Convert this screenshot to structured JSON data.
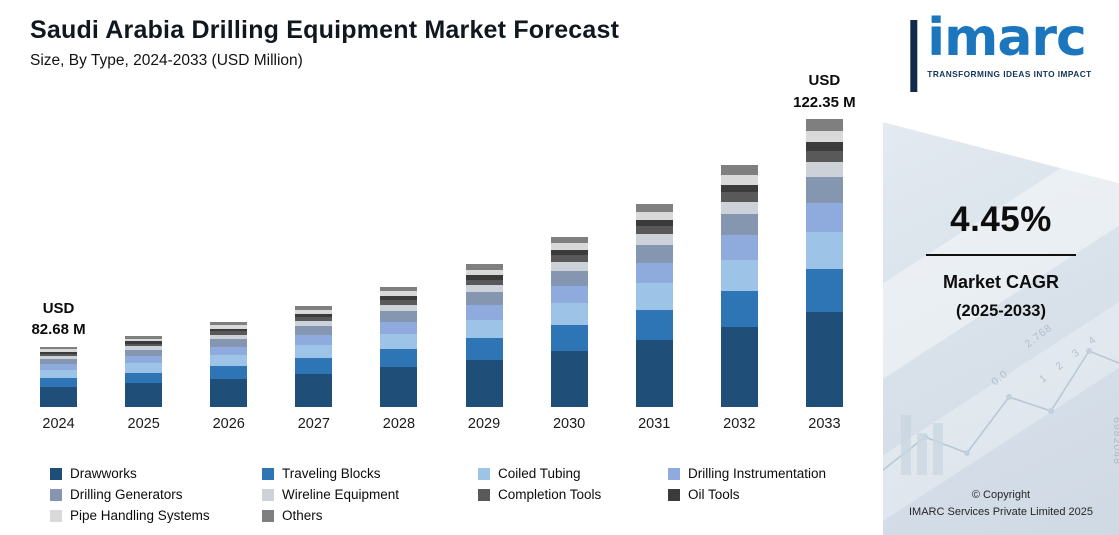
{
  "chart_data": {
    "type": "bar",
    "stacked": true,
    "title": "Saudi Arabia Drilling Equipment Market Forecast",
    "subtitle": "Size, By Type, 2024-2033 (USD Million)",
    "xlabel": "",
    "ylabel": "USD Million",
    "legend_position": "bottom",
    "grid": false,
    "categories": [
      "2024",
      "2025",
      "2026",
      "2027",
      "2028",
      "2029",
      "2030",
      "2031",
      "2032",
      "2033"
    ],
    "annotated_totals": {
      "2024": 82.68,
      "2033": 122.35
    },
    "annotations": [
      {
        "category": "2024",
        "lines": [
          "USD",
          "82.68 M"
        ]
      },
      {
        "category": "2033",
        "lines": [
          "USD",
          "122.35 M"
        ]
      }
    ],
    "series": [
      {
        "name": "Drawworks",
        "color": "#1f4e79",
        "values": [
          27.28,
          28.5,
          29.77,
          31.09,
          32.48,
          33.92,
          35.43,
          37.01,
          38.65,
          40.38
        ]
      },
      {
        "name": "Traveling Blocks",
        "color": "#2e75b6",
        "values": [
          12.4,
          12.95,
          13.53,
          14.13,
          14.76,
          15.42,
          16.1,
          16.82,
          17.57,
          18.35
        ]
      },
      {
        "name": "Coiled Tubing",
        "color": "#9dc3e6",
        "values": [
          10.75,
          11.23,
          11.73,
          12.25,
          12.79,
          13.36,
          13.96,
          14.58,
          15.23,
          15.91
        ]
      },
      {
        "name": "Drilling Instrumentation",
        "color": "#8faadc",
        "values": [
          8.27,
          8.64,
          9.02,
          9.42,
          9.84,
          10.28,
          10.74,
          11.21,
          11.71,
          12.24
        ]
      },
      {
        "name": "Drilling Generators",
        "color": "#8496b0",
        "values": [
          7.44,
          7.77,
          8.12,
          8.48,
          8.86,
          9.25,
          9.66,
          10.09,
          10.54,
          11.01
        ]
      },
      {
        "name": "Wireline Equipment",
        "color": "#ccd2d8",
        "values": [
          4.13,
          4.32,
          4.51,
          4.71,
          4.92,
          5.14,
          5.37,
          5.61,
          5.86,
          6.12
        ]
      },
      {
        "name": "Completion Tools",
        "color": "#595959",
        "values": [
          3.31,
          3.45,
          3.61,
          3.77,
          3.94,
          4.11,
          4.29,
          4.49,
          4.69,
          4.89
        ]
      },
      {
        "name": "Oil Tools",
        "color": "#3b3b3b",
        "values": [
          2.48,
          2.59,
          2.71,
          2.83,
          2.95,
          3.08,
          3.22,
          3.36,
          3.51,
          3.67
        ]
      },
      {
        "name": "Pipe Handling Systems",
        "color": "#d9d9d9",
        "values": [
          3.31,
          3.45,
          3.61,
          3.77,
          3.94,
          4.11,
          4.29,
          4.49,
          4.69,
          4.89
        ]
      },
      {
        "name": "Others",
        "color": "#7f7f7f",
        "values": [
          3.31,
          3.45,
          3.61,
          3.77,
          3.94,
          4.11,
          4.29,
          4.49,
          4.69,
          4.89
        ]
      }
    ]
  },
  "sidebar": {
    "logo_text": "imarc",
    "tagline": "TRANSFORMING IDEAS INTO IMPACT",
    "cagr_value": "4.45%",
    "cagr_label_line1": "Market CAGR",
    "cagr_label_line2": "(2025-2033)",
    "copyright_line1": "© Copyright",
    "copyright_line2": "IMARC Services Private Limited 2025",
    "accent_color": "#1b76bd",
    "decorative_numbers": [
      "6982048",
      "2.768",
      "0.0",
      "1 2 3 4"
    ]
  }
}
